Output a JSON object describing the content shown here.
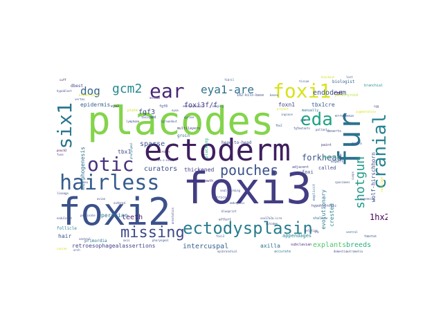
{
  "words": [
    {
      "text": "foxi3",
      "color": "#433d84",
      "size": 62
    },
    {
      "text": "placodes",
      "color": "#84d44b",
      "size": 56
    },
    {
      "text": "foxi2",
      "color": "#3b518b",
      "size": 54
    },
    {
      "text": "ectoderm",
      "color": "#3e1f5f",
      "size": 44
    },
    {
      "text": "fur",
      "color": "#2c728e",
      "size": 44
    },
    {
      "text": "hairless",
      "color": "#365c8d",
      "size": 30
    },
    {
      "text": "cranial",
      "color": "#26828e",
      "size": 26
    },
    {
      "text": "otic",
      "color": "#46327e",
      "size": 28
    },
    {
      "text": "six1",
      "color": "#2a768e",
      "size": 28
    },
    {
      "text": "ear",
      "color": "#482677",
      "size": 28
    },
    {
      "text": "foxi1",
      "color": "#d8e219",
      "size": 28
    },
    {
      "text": "eda",
      "color": "#20a386",
      "size": 26
    },
    {
      "text": "ectodysplasin",
      "color": "#287d8e",
      "size": 24
    },
    {
      "text": "missing",
      "color": "#3e4989",
      "size": 22
    },
    {
      "text": "pouches",
      "color": "#3b528b",
      "size": 20
    },
    {
      "text": "shotgun",
      "color": "#1f9a8a",
      "size": 18
    },
    {
      "text": "gcm2",
      "color": "#238a8d",
      "size": 18
    },
    {
      "text": "eya1-are",
      "color": "#2d708e",
      "size": 16
    },
    {
      "text": "dog",
      "color": "#32648e",
      "size": 16
    },
    {
      "text": "forkhead",
      "color": "#39558c",
      "size": 12
    },
    {
      "text": "endoderm",
      "color": "#39568c",
      "size": 10
    },
    {
      "text": "fgf3",
      "color": "#3f4788",
      "size": 10
    },
    {
      "text": "foxi3f/f",
      "color": "#453781",
      "size": 10
    },
    {
      "text": "curators",
      "color": "#3d4d8a",
      "size": 10
    },
    {
      "text": "sparse",
      "color": "#3a548c",
      "size": 10
    },
    {
      "text": "teeth",
      "color": "#481f70",
      "size": 10
    },
    {
      "text": "breeds",
      "color": "#29af7f",
      "size": 10
    },
    {
      "text": "1hx2",
      "color": "#440154",
      "size": 12
    },
    {
      "text": "explants",
      "color": "#52c569",
      "size": 10
    },
    {
      "text": "intercuspal",
      "color": "#35608d",
      "size": 10
    },
    {
      "text": "retroesophagealassertions",
      "color": "#414487",
      "size": 8
    },
    {
      "text": "epidermis",
      "color": "#355f8d",
      "size": 8
    },
    {
      "text": "foxn1",
      "color": "#414287",
      "size": 8
    },
    {
      "text": "tbx1cre",
      "color": "#365d8d",
      "size": 8
    },
    {
      "text": "thickened",
      "color": "#433e85",
      "size": 8
    },
    {
      "text": "evolutionary",
      "color": "#2a788e",
      "size": 8
    },
    {
      "text": "crested",
      "color": "#26828e",
      "size": 8
    },
    {
      "text": "wolf-hirschhorn",
      "color": "#3b518b",
      "size": 8
    },
    {
      "text": "peruvian",
      "color": "#2c728e",
      "size": 8
    },
    {
      "text": "hair",
      "color": "#3b528b",
      "size": 8
    },
    {
      "text": "axilla",
      "color": "#2d708e",
      "size": 8
    },
    {
      "text": "tbx1",
      "color": "#3e4a89",
      "size": 8
    },
    {
      "text": "morphogenesis",
      "color": "#2e6f8e",
      "size": 8
    },
    {
      "text": "appendages",
      "color": "#26828e",
      "size": 7
    },
    {
      "text": "called",
      "color": "#3e4989",
      "size": 7
    },
    {
      "text": "foxi",
      "color": "#3d4e8a",
      "size": 7
    },
    {
      "text": "ced",
      "color": "#440154",
      "size": 7
    },
    {
      "text": "dbest",
      "color": "#404588",
      "size": 6
    },
    {
      "text": "groin",
      "color": "#31688e",
      "size": 6
    },
    {
      "text": "primordia",
      "color": "#2c738e",
      "size": 6
    },
    {
      "text": "follicle",
      "color": "#25858e",
      "size": 6
    },
    {
      "text": "plucking",
      "color": "#25ab82",
      "size": 6
    },
    {
      "text": "head-to-head",
      "color": "#3e4c8a",
      "size": 6
    },
    {
      "text": "multilayers",
      "color": "#46337f",
      "size": 5
    },
    {
      "text": "downgrowth",
      "color": "#482576",
      "size": 5
    },
    {
      "text": "102-kilo-base",
      "color": "#3c4f8a",
      "size": 5
    },
    {
      "text": "biologist",
      "color": "#33628d",
      "size": 6
    },
    {
      "text": "branchial",
      "color": "#21918c",
      "size": 5
    },
    {
      "text": "parathyroid",
      "color": "#b5de2b",
      "size": 5
    },
    {
      "text": "taurus",
      "color": "#3b528b",
      "size": 5
    },
    {
      "text": "subclavian",
      "color": "#482878",
      "size": 5
    },
    {
      "text": "accurate",
      "color": "#2a788e",
      "size": 5
    },
    {
      "text": "shallow",
      "color": "#2e6e8e",
      "size": 5
    },
    {
      "text": "hypohidrotic",
      "color": "#424086",
      "size": 5
    },
    {
      "text": "effort",
      "color": "#3f4889",
      "size": 5
    },
    {
      "text": "manifold",
      "color": "#3aba76",
      "size": 5
    },
    {
      "text": "metrics",
      "color": "#3c4f8a",
      "size": 5
    },
    {
      "text": "paint",
      "color": "#453882",
      "size": 5
    },
    {
      "text": "adjacent",
      "color": "#3e4a89",
      "size": 5
    },
    {
      "text": "explicit",
      "color": "#2d708e",
      "size": 5
    },
    {
      "text": "crown",
      "color": "#48196b",
      "size": 5
    },
    {
      "text": "deserts",
      "color": "#3c508b",
      "size": 5
    },
    {
      "text": "pairs",
      "color": "#38588c",
      "size": 5
    },
    {
      "text": "expert",
      "color": "#3a538b",
      "size": 5
    },
    {
      "text": "manually",
      "color": "#2e6f8e",
      "size": 5
    },
    {
      "text": "erroneous",
      "color": "#3b518b",
      "size": 5
    },
    {
      "text": "alcam",
      "color": "#46317e",
      "size": 5
    },
    {
      "text": "ppr",
      "color": "#32658e",
      "size": 5
    },
    {
      "text": "eya2",
      "color": "#404688",
      "size": 5
    },
    {
      "text": "plate",
      "color": "#d0e11c",
      "size": 5
    },
    {
      "text": "fgf8",
      "color": "#3e4989",
      "size": 5
    },
    {
      "text": "hypoblast",
      "color": "#3b518b",
      "size": 4
    },
    {
      "text": "annotation",
      "color": "#3f4788",
      "size": 4
    },
    {
      "text": "pharyngeal",
      "color": "#2c728e",
      "size": 4
    },
    {
      "text": "cuff",
      "color": "#440154",
      "size": 4
    },
    {
      "text": "foxi3",
      "color": "#3b528b",
      "size": 4
    },
    {
      "text": "blueprint",
      "color": "#3e4989",
      "size": 4
    },
    {
      "text": "sox17a2a-icre",
      "color": "#414487",
      "size": 4
    },
    {
      "text": "ea.s-e19.5",
      "color": "#3b528b",
      "size": 4
    },
    {
      "text": "seal-forming",
      "color": "#3e4989",
      "size": 4
    },
    {
      "text": "epibranchial",
      "color": "#3b528b",
      "size": 4
    },
    {
      "text": "domestic",
      "color": "#414487",
      "size": 4
    },
    {
      "text": "cartilage",
      "color": "#d8e219",
      "size": 4
    },
    {
      "text": "mutrametia",
      "color": "#3b528b",
      "size": 4
    },
    {
      "text": "deletion",
      "color": "#3e4989",
      "size": 4
    },
    {
      "text": "vertex",
      "color": "#3b528b",
      "size": 4
    },
    {
      "text": "cusps",
      "color": "#414487",
      "size": 4
    },
    {
      "text": "pectinate",
      "color": "#3b528b",
      "size": 4
    },
    {
      "text": "nodulated",
      "color": "#3e4989",
      "size": 4
    },
    {
      "text": "pouch2",
      "color": "#440154",
      "size": 4
    },
    {
      "text": "gyrase",
      "color": "#3b528b",
      "size": 4
    },
    {
      "text": "fuse",
      "color": "#414487",
      "size": 4
    },
    {
      "text": "dramatically",
      "color": "#d8e219",
      "size": 4
    },
    {
      "text": "axis",
      "color": "#3b528b",
      "size": 4
    },
    {
      "text": "embryophallia",
      "color": "#3e4989",
      "size": 4
    },
    {
      "text": "imaging",
      "color": "#3b528b",
      "size": 4
    },
    {
      "text": "pallast",
      "color": "#414487",
      "size": 4
    },
    {
      "text": "fibril",
      "color": "#3b528b",
      "size": 4
    },
    {
      "text": "eyoa",
      "color": "#3e4989",
      "size": 4
    },
    {
      "text": "tissue",
      "color": "#3b528b",
      "size": 4
    },
    {
      "text": "project",
      "color": "#d8e219",
      "size": 4
    },
    {
      "text": "bases",
      "color": "#3b528b",
      "size": 4
    },
    {
      "text": "fgfmutants",
      "color": "#3e4989",
      "size": 4
    },
    {
      "text": "thc",
      "color": "#414487",
      "size": 4
    },
    {
      "text": "ventral",
      "color": "#3b528b",
      "size": 4
    },
    {
      "text": "oogenesis",
      "color": "#3e4989",
      "size": 4
    },
    {
      "text": "lost",
      "color": "#3b528b",
      "size": 4
    },
    {
      "text": "cgg",
      "color": "#414487",
      "size": 4
    },
    {
      "text": "augmentation",
      "color": "#d8e219",
      "size": 4
    },
    {
      "text": "embryonic",
      "color": "#3b528b",
      "size": 4
    },
    {
      "text": "avian",
      "color": "#3e4989",
      "size": 4
    },
    {
      "text": "fbx2",
      "color": "#3b528b",
      "size": 4
    },
    {
      "text": "lymphoma",
      "color": "#414487",
      "size": 4
    },
    {
      "text": "inpiece",
      "color": "#3b528b",
      "size": 4
    },
    {
      "text": "knockout",
      "color": "#d8e219",
      "size": 4
    },
    {
      "text": "specimens",
      "color": "#3b528b",
      "size": 4
    },
    {
      "text": "lgroundout",
      "color": "#3e4989",
      "size": 4
    },
    {
      "text": "ectodem",
      "color": "#3b528b",
      "size": 4
    },
    {
      "text": "ventral",
      "color": "#414487",
      "size": 4
    },
    {
      "text": "pharyngeal",
      "color": "#3b528b",
      "size": 4
    },
    {
      "text": "lineage",
      "color": "#3e4989",
      "size": 4
    },
    {
      "text": "leu",
      "color": "#3b528b",
      "size": 4
    },
    {
      "text": "outbred",
      "color": "#414487",
      "size": 4
    },
    {
      "text": "tbx1crel1",
      "color": "#3b528b",
      "size": 4
    },
    {
      "text": "gcm",
      "color": "#3e4989",
      "size": 4
    },
    {
      "text": "canine",
      "color": "#d8e219",
      "size": 4
    },
    {
      "text": "arch",
      "color": "#3b528b",
      "size": 4
    }
  ]
}
